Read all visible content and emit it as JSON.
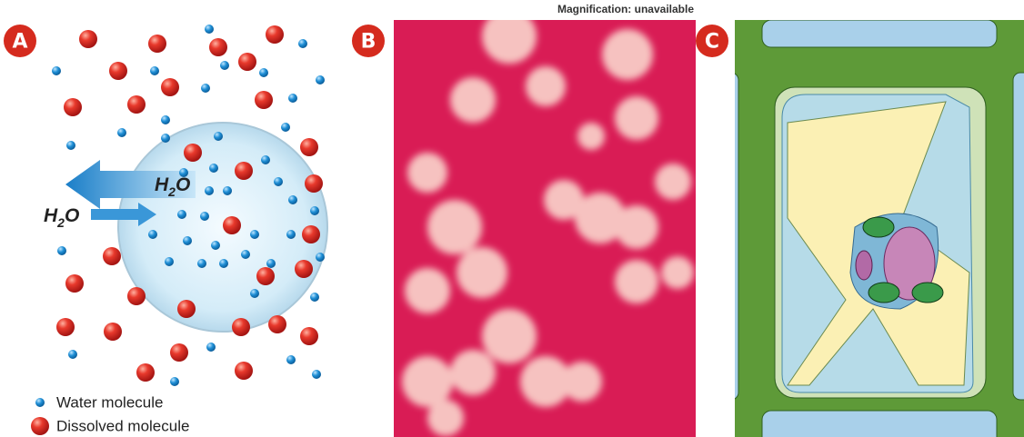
{
  "panels": {
    "a": {
      "label": "A",
      "inner_water": {
        "main": "H",
        "sub": "2",
        "end": "O"
      },
      "outer_water": {
        "main": "H",
        "sub": "2",
        "end": "O"
      },
      "legend": {
        "water": "Water molecule",
        "dissolved": "Dissolved molecule"
      }
    },
    "b": {
      "label": "B",
      "caption": "Magnification: unavailable"
    },
    "c": {
      "label": "C"
    }
  }
}
